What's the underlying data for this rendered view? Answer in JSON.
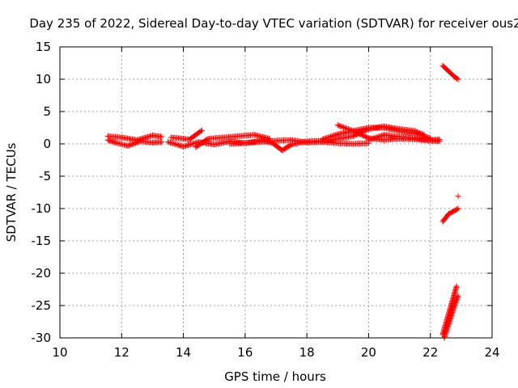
{
  "chart_data": {
    "type": "scatter",
    "title": "Day 235 of 2022, Sidereal Day-to-day VTEC variation (SDTVAR) for receiver ous2",
    "xlabel": "GPS time / hours",
    "ylabel": "SDTVAR / TECUs",
    "xlim": [
      10,
      24
    ],
    "ylim": [
      -30,
      15
    ],
    "x_ticks": [
      10,
      12,
      14,
      16,
      18,
      20,
      22,
      24
    ],
    "x_tick_labels": [
      "10",
      "12",
      "14",
      "16",
      "18",
      "20",
      "22",
      "24"
    ],
    "y_ticks": [
      -30,
      -25,
      -20,
      -15,
      -10,
      -5,
      0,
      5,
      10,
      15
    ],
    "y_tick_labels": [
      "-30",
      "-25",
      "-20",
      "-15",
      "-10",
      "-5",
      "0",
      "5",
      "10",
      "15"
    ],
    "grid": true,
    "marker": "+",
    "color": "#ff0000",
    "series": [
      {
        "tracks": [
          [
            [
              11.55,
              1.2
            ],
            [
              12.0,
              1.0
            ],
            [
              12.5,
              0.6
            ],
            [
              13.0,
              1.3
            ],
            [
              13.3,
              1.1
            ]
          ],
          [
            [
              11.55,
              0.6
            ],
            [
              11.8,
              0.2
            ],
            [
              12.2,
              -0.3
            ],
            [
              12.6,
              0.4
            ],
            [
              13.0,
              0.2
            ],
            [
              13.3,
              0.3
            ]
          ],
          [
            [
              13.5,
              0.3
            ],
            [
              14.0,
              -0.4
            ],
            [
              14.5,
              0.3
            ],
            [
              15.0,
              -0.1
            ],
            [
              15.5,
              0.4
            ],
            [
              16.0,
              0.1
            ],
            [
              16.5,
              0.5
            ]
          ],
          [
            [
              13.6,
              1.0
            ],
            [
              14.2,
              0.7
            ],
            [
              14.6,
              2.1
            ]
          ],
          [
            [
              14.4,
              -0.5
            ],
            [
              14.8,
              0.8
            ],
            [
              15.3,
              1.0
            ],
            [
              15.8,
              1.2
            ],
            [
              16.3,
              1.4
            ],
            [
              16.8,
              0.8
            ]
          ],
          [
            [
              16.5,
              0.6
            ],
            [
              16.9,
              0.1
            ],
            [
              17.2,
              -1.0
            ],
            [
              17.5,
              -0.1
            ],
            [
              18.0,
              0.4
            ],
            [
              18.5,
              0.5
            ],
            [
              19.0,
              0.8
            ],
            [
              19.5,
              1.2
            ],
            [
              20.0,
              2.3
            ],
            [
              20.5,
              2.7
            ],
            [
              21.0,
              2.3
            ],
            [
              21.5,
              2.0
            ],
            [
              21.8,
              1.4
            ]
          ],
          [
            [
              15.5,
              0.0
            ],
            [
              16.5,
              0.3
            ],
            [
              17.0,
              0.5
            ],
            [
              17.5,
              0.6
            ],
            [
              18.0,
              0.2
            ],
            [
              18.5,
              0.3
            ],
            [
              19.0,
              0.1
            ],
            [
              19.5,
              0.0
            ],
            [
              20.0,
              0.1
            ]
          ],
          [
            [
              18.5,
              0.7
            ],
            [
              19.0,
              1.5
            ],
            [
              19.5,
              2.0
            ],
            [
              20.0,
              2.5
            ],
            [
              20.5,
              2.5
            ],
            [
              21.0,
              2.0
            ],
            [
              21.5,
              1.6
            ],
            [
              22.0,
              0.9
            ]
          ],
          [
            [
              19.0,
              2.9
            ],
            [
              19.5,
              2.0
            ],
            [
              20.0,
              0.9
            ],
            [
              20.5,
              0.6
            ],
            [
              21.0,
              0.8
            ],
            [
              21.5,
              0.7
            ],
            [
              22.0,
              0.5
            ],
            [
              22.3,
              0.4
            ]
          ],
          [
            [
              20.0,
              0.6
            ],
            [
              20.5,
              1.4
            ],
            [
              21.0,
              1.1
            ],
            [
              21.5,
              0.9
            ],
            [
              22.0,
              0.6
            ],
            [
              22.3,
              0.7
            ]
          ],
          [
            [
              22.4,
              12.1
            ],
            [
              22.6,
              11.2
            ],
            [
              22.8,
              10.3
            ],
            [
              22.9,
              10.0
            ]
          ],
          [
            [
              22.4,
              -12.0
            ],
            [
              22.6,
              -10.8
            ],
            [
              22.8,
              -10.3
            ],
            [
              22.9,
              -10.0
            ]
          ],
          [
            [
              22.9,
              -8.1
            ]
          ],
          [
            [
              22.4,
              -29.5
            ],
            [
              22.55,
              -27.0
            ],
            [
              22.7,
              -24.5
            ],
            [
              22.85,
              -22.0
            ]
          ],
          [
            [
              22.45,
              -30.0
            ],
            [
              22.6,
              -27.8
            ],
            [
              22.75,
              -25.5
            ],
            [
              22.9,
              -23.5
            ]
          ]
        ]
      }
    ]
  }
}
